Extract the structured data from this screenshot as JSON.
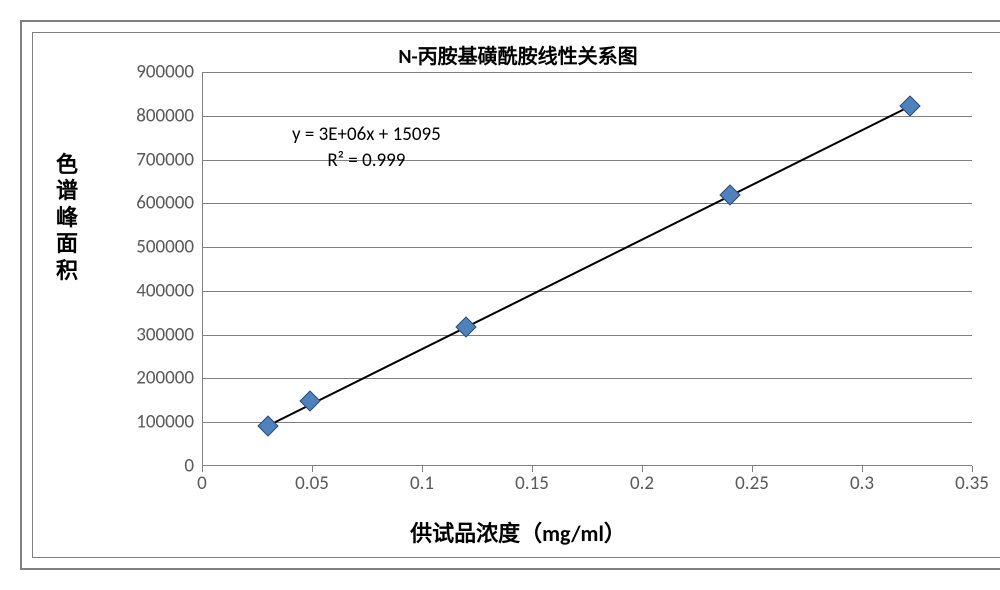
{
  "chart": {
    "type": "scatter",
    "title": "N-丙胺基磺酰胺线性关系图",
    "title_fontsize": 20,
    "title_color": "#000000",
    "background_color": "#ffffff",
    "outer_border_color": "#808080",
    "inner_border_color": "#808080",
    "grid_color": "#808080",
    "axis_line_color": "#808080",
    "tick_label_color": "#595959",
    "tick_label_fontsize": 19,
    "x_axis": {
      "label": "供试品浓度（mg/ml）",
      "label_fontsize": 22,
      "label_color": "#000000",
      "min": 0,
      "max": 0.35,
      "tick_step": 0.05,
      "ticks": [
        0,
        0.05,
        0.1,
        0.15,
        0.2,
        0.25,
        0.3,
        0.35
      ]
    },
    "y_axis": {
      "label": "色谱峰面积",
      "label_fontsize": 22,
      "label_color": "#000000",
      "min": 0,
      "max": 900000,
      "tick_step": 100000,
      "ticks": [
        0,
        100000,
        200000,
        300000,
        400000,
        500000,
        600000,
        700000,
        800000,
        900000
      ]
    },
    "series": {
      "name": "N-丙胺基磺酰胺",
      "marker_style": "diamond",
      "marker_size": 13,
      "marker_fill": "#4f81bd",
      "marker_border": "#2e4d72",
      "points": [
        {
          "x": 0.03,
          "y": 92000
        },
        {
          "x": 0.049,
          "y": 148000
        },
        {
          "x": 0.12,
          "y": 318000
        },
        {
          "x": 0.24,
          "y": 620000
        },
        {
          "x": 0.322,
          "y": 822000
        }
      ]
    },
    "trendline": {
      "color": "#000000",
      "width": 2,
      "equation": "y = 3E+06x + 15095",
      "r_squared": "R² = 0.999",
      "x_start": 0.03,
      "y_start": 92000,
      "x_end": 0.322,
      "y_end": 822000
    }
  }
}
